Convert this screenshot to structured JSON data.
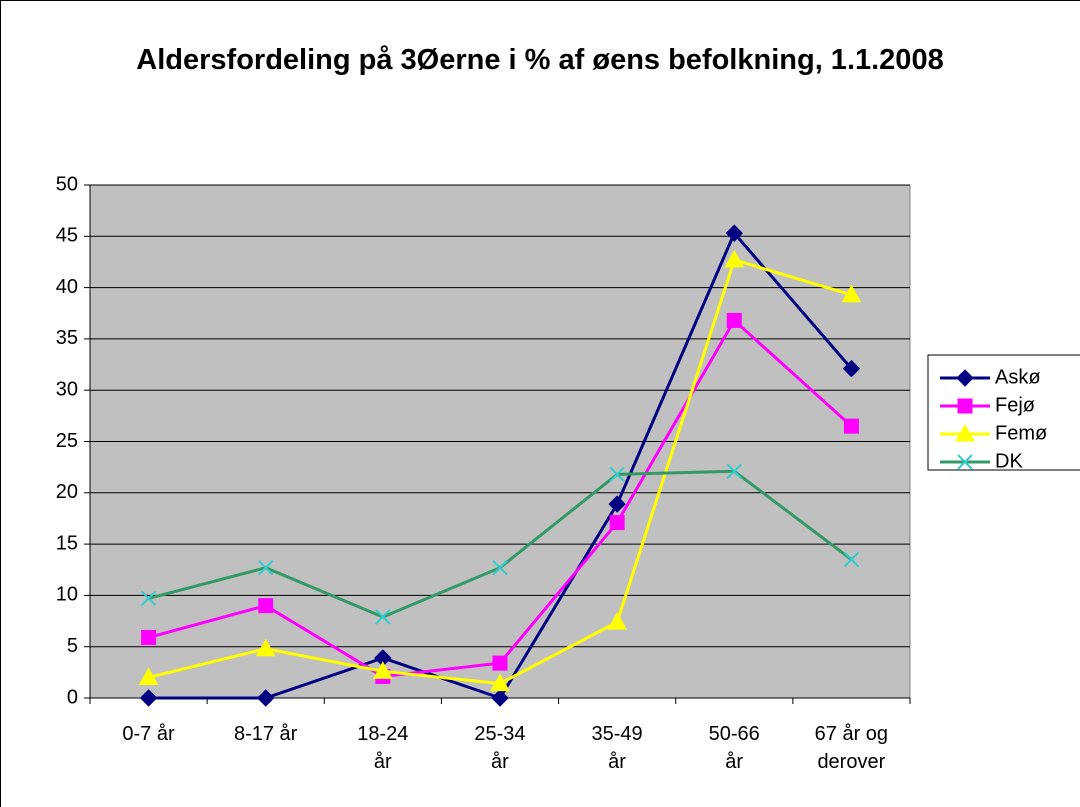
{
  "chart_data": {
    "type": "line",
    "title": "Aldersfordeling på 3Øerne i % af øens befolkning, 1.1.2008",
    "categories": [
      "0-7 år",
      "8-17 år",
      "18-24\når",
      "25-34\når",
      "35-49\når",
      "50-66\når",
      "67 år og\nderover"
    ],
    "series": [
      {
        "name": "Askø",
        "color": "#000080",
        "marker": "diamond",
        "marker_color": "#000080",
        "values": [
          0,
          0,
          3.9,
          0,
          18.9,
          45.3,
          32.1
        ]
      },
      {
        "name": "Fejø",
        "color": "#ff00ff",
        "marker": "square",
        "marker_color": "#ff00ff",
        "values": [
          5.9,
          9.0,
          2.1,
          3.4,
          17.1,
          36.8,
          26.5
        ]
      },
      {
        "name": "Femø",
        "color": "#ffff00",
        "marker": "triangle",
        "marker_color": "#ffff00",
        "values": [
          2.0,
          4.8,
          2.6,
          1.4,
          7.4,
          42.7,
          39.3
        ]
      },
      {
        "name": "DK",
        "color": "#339966",
        "marker": "x",
        "marker_color": "#33cccc",
        "values": [
          9.7,
          12.7,
          7.9,
          12.7,
          21.8,
          22.1,
          13.5
        ]
      }
    ],
    "ylim": [
      0,
      50
    ],
    "yticks": [
      0,
      5,
      10,
      15,
      20,
      25,
      30,
      35,
      40,
      45,
      50
    ],
    "grid": true,
    "plot_background": "#c0c0c0",
    "legend": "right"
  }
}
